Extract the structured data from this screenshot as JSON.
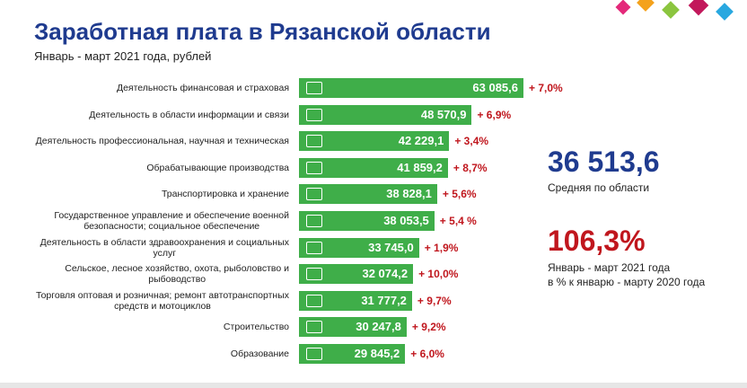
{
  "title": "Заработная плата в Рязанской области",
  "subtitle": "Январь - март 2021 года, рублей",
  "chart_data": {
    "type": "bar",
    "orientation": "horizontal",
    "color": "#3fae49",
    "categories": [
      "Деятельность финансовая и страховая",
      "Деятельность в области информации и связи",
      "Деятельность профессиональная, научная и техническая",
      "Обрабатывающие производства",
      "Транспортировка и хранение",
      "Государственное управление и обеспечение военной\nбезопасности; социальное обеспечение",
      "Деятельность в области здравоохранения и социальных\nуслуг",
      "Сельское, лесное хозяйство, охота, рыболовство и\nрыбоводство",
      "Торговля оптовая и розничная; ремонт автотранспортных\nсредств и мотоциклов",
      "Строительство",
      "Образование"
    ],
    "values": [
      63085.6,
      48570.9,
      42229.1,
      41859.2,
      38828.1,
      38053.5,
      33745.0,
      32074.2,
      31777.2,
      30247.8,
      29845.2
    ],
    "value_labels": [
      "63 085,6",
      "48 570,9",
      "42 229,1",
      "41 859,2",
      "38 828,1",
      "38 053,5",
      "33 745,0",
      "32 074,2",
      "31 777,2",
      "30 247,8",
      "29 845,2"
    ],
    "change_labels": [
      "+ 7,0%",
      "+ 6,9%",
      "+ 3,4%",
      "+ 8,7%",
      "+ 5,6%",
      "+ 5,4 %",
      "+ 1,9%",
      "+ 10,0%",
      "+ 9,7%",
      "+ 9,2%",
      "+ 6,0%"
    ]
  },
  "summary": {
    "average": "36 513,6",
    "average_caption": "Средняя по области",
    "index": "106,3%",
    "index_caption": [
      "Январь - март 2021 года",
      "в % к январю - марту 2020 года"
    ]
  }
}
